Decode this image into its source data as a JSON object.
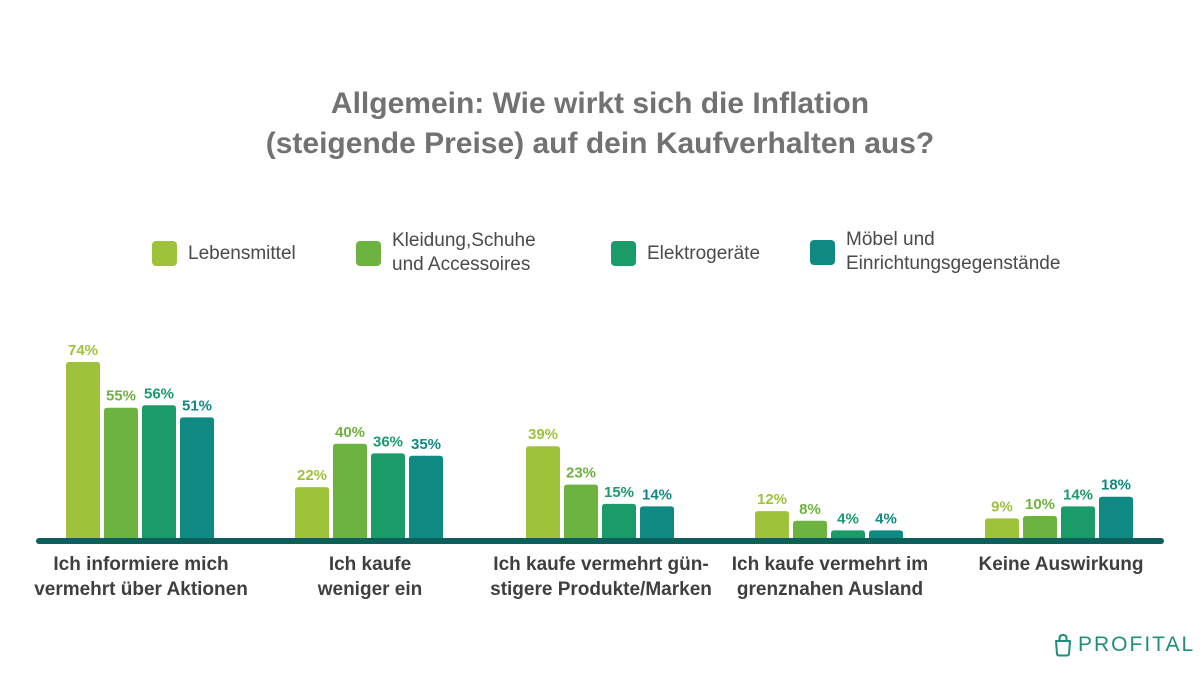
{
  "chart_data": {
    "type": "bar",
    "title_lines": [
      "Allgemein: Wie wirkt sich die Inflation",
      "(steigende Preise) auf dein Kaufverhalten aus?"
    ],
    "categories": [
      "Ich informiere mich\nvermehrt über Aktionen",
      "Ich kaufe\nweniger ein",
      "Ich kaufe vermehrt gün-\nstigere Produkte/Marken",
      "Ich kaufe vermehrt im\ngrenznahen Ausland",
      "Keine Auswirkung"
    ],
    "series": [
      {
        "name": "Lebensmittel",
        "color": "#9ec33b",
        "values": [
          74,
          22,
          39,
          12,
          9
        ],
        "labels": [
          "74%",
          "22%",
          "39%",
          "12%",
          "9%"
        ]
      },
      {
        "name": "Kleidung,Schuhe\nund Accessoires",
        "color": "#6db33f",
        "values": [
          55,
          40,
          23,
          8,
          10
        ],
        "labels": [
          "55%",
          "40%",
          "23%",
          "8%",
          "10%"
        ]
      },
      {
        "name": "Elektrogeräte",
        "color": "#1a9b6a",
        "values": [
          56,
          36,
          15,
          4,
          14
        ],
        "labels": [
          "56%",
          "36%",
          "15%",
          "4%",
          "14%"
        ]
      },
      {
        "name": "Möbel und\nEinrichtungsgegenstände",
        "color": "#0f8a82",
        "values": [
          51,
          35,
          14,
          4,
          18
        ],
        "labels": [
          "51%",
          "35%",
          "14%",
          "4%",
          "18%"
        ]
      }
    ],
    "ylim": [
      0,
      80
    ],
    "grid": false,
    "legend": "top",
    "baseline_color": "#0d5f5c"
  },
  "brand": {
    "name": "PROFITAL",
    "icon": "shopping-bag-icon",
    "color": "#1f8f7a"
  }
}
